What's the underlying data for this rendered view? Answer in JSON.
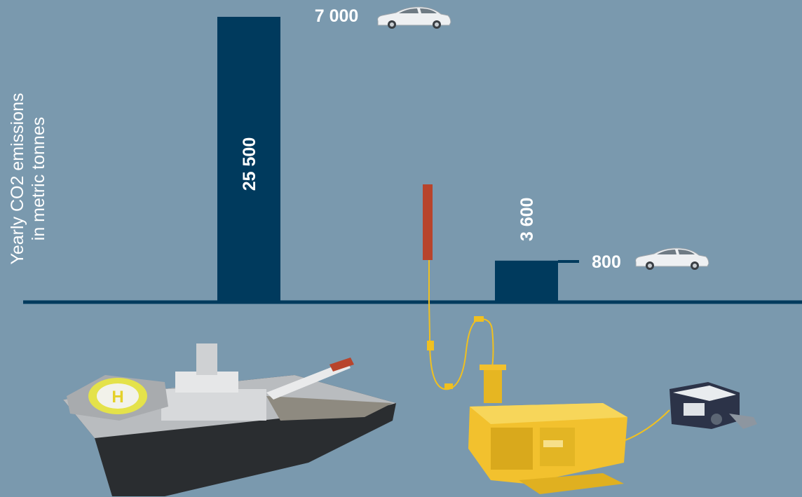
{
  "chart_data": {
    "type": "bar",
    "title": "",
    "ylabel_lines": [
      "Yearly  CO2 emissions",
      "in metric tonnes"
    ],
    "xlabel": "",
    "ylim": [
      0,
      25500
    ],
    "bars": [
      {
        "value": 25500,
        "label": "25 500",
        "icon": "offshore-vessel"
      },
      {
        "value": 3600,
        "label": "3 600",
        "icon": "subsea-template-with-rov"
      }
    ],
    "annotations": [
      {
        "label": "7 000",
        "icon": "car-icon",
        "refers_to": "25 500"
      },
      {
        "label": "800",
        "icon": "car-icon",
        "refers_to": "3 600"
      }
    ],
    "grid": false,
    "legend": "none"
  },
  "colors": {
    "background": "#7a99ae",
    "bar": "#003a5d",
    "baseline": "#003a5d",
    "label": "#ffffff",
    "buoy": "#b8442c",
    "umbilical": "#f0c020",
    "structure": "#f2c12e"
  }
}
